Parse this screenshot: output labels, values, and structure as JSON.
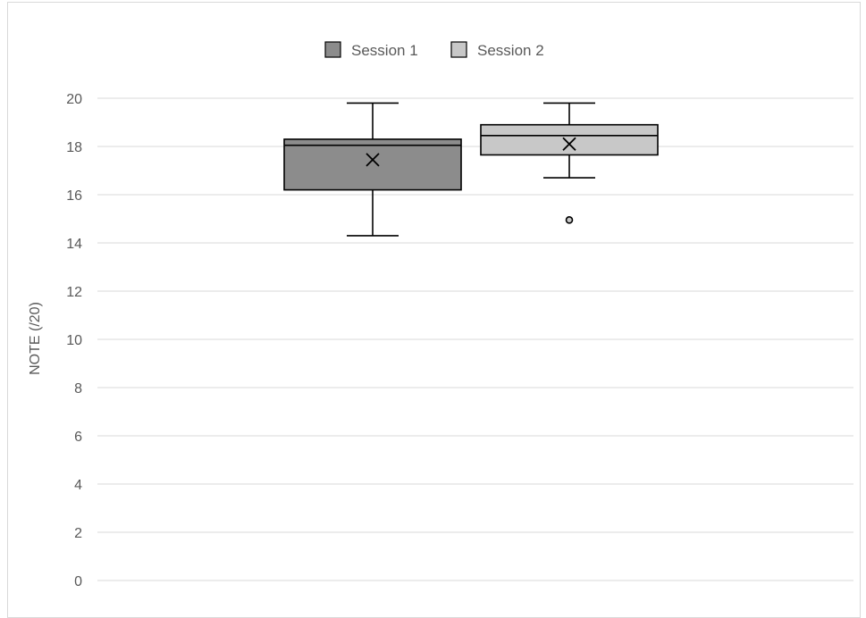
{
  "chart_data": {
    "type": "boxplot",
    "title": "",
    "ylabel": "NOTE  (/20)",
    "ylim": [
      0,
      20
    ],
    "yticks": [
      "0",
      "2",
      "4",
      "6",
      "8",
      "10",
      "12",
      "14",
      "16",
      "18",
      "20"
    ],
    "grid": true,
    "legend_position": "top",
    "series": [
      {
        "name": "Session 1",
        "color": "#8c8c8c",
        "min": 14.3,
        "q1": 16.2,
        "median": 18.05,
        "q3": 18.3,
        "max": 19.8,
        "mean": 17.45,
        "outliers": []
      },
      {
        "name": "Session 2",
        "color": "#c8c8c8",
        "min": 16.7,
        "q1": 17.65,
        "median": 18.45,
        "q3": 18.9,
        "max": 19.8,
        "mean": 18.1,
        "outliers": [
          14.95
        ]
      }
    ]
  }
}
